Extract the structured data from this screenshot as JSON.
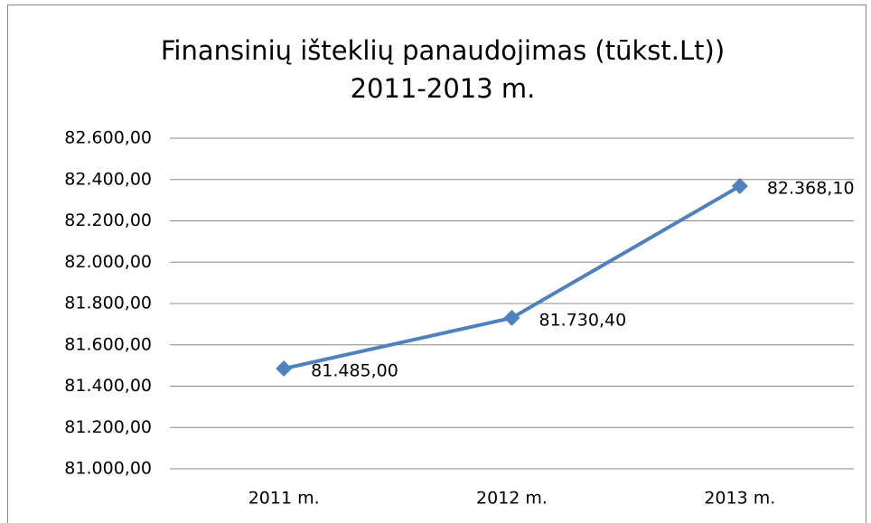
{
  "chart_data": {
    "type": "line",
    "title": "Finansinių išteklių panaudojimas (tūkst.Lt))",
    "subtitle": "2011-2013 m.",
    "categories": [
      "2011 m.",
      "2012 m.",
      "2013 m."
    ],
    "series": [
      {
        "name": "Finansinių išteklių panaudojimas",
        "color": "#4f81bd",
        "values": [
          81485.0,
          81730.4,
          82368.1
        ],
        "value_labels": [
          "81.485,00",
          "81.730,40",
          "82.368,10"
        ]
      }
    ],
    "ylim": [
      81000,
      82600
    ],
    "yticks": [
      {
        "value": 81000,
        "label": "81.000,00"
      },
      {
        "value": 81200,
        "label": "81.200,00"
      },
      {
        "value": 81400,
        "label": "81.400,00"
      },
      {
        "value": 81600,
        "label": "81.600,00"
      },
      {
        "value": 81800,
        "label": "81.800,00"
      },
      {
        "value": 82000,
        "label": "82.000,00"
      },
      {
        "value": 82200,
        "label": "82.200,00"
      },
      {
        "value": 82400,
        "label": "82.400,00"
      },
      {
        "value": 82600,
        "label": "82.600,00"
      }
    ],
    "grid": true
  }
}
